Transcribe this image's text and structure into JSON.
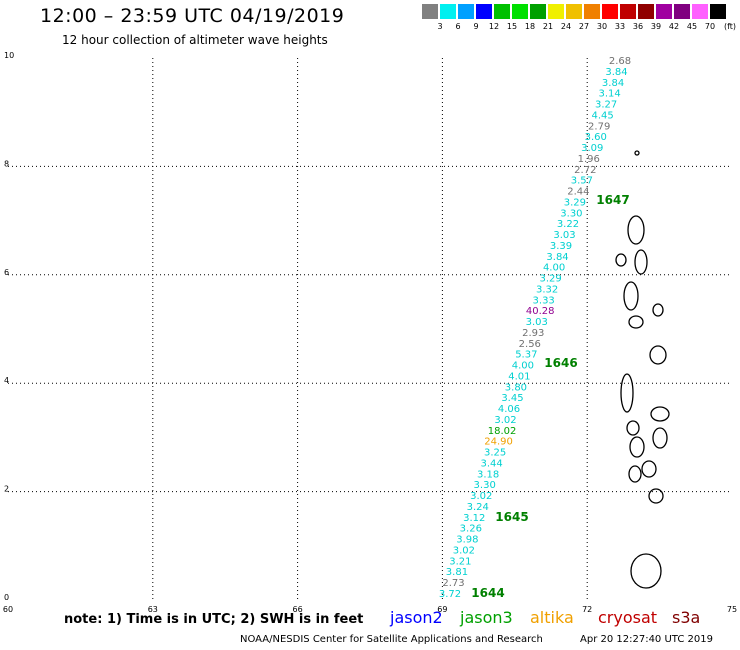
{
  "header": {
    "title": "12:00 – 23:59 UTC 04/19/2019",
    "subtitle": "12 hour collection of altimeter wave heights"
  },
  "legend": {
    "colors": [
      "#808080",
      "#00f0f0",
      "#00a0ff",
      "#0000ff",
      "#00c000",
      "#00e000",
      "#00a000",
      "#f0f000",
      "#f0c000",
      "#f08000",
      "#ff0000",
      "#c00000",
      "#900000",
      "#a000a0",
      "#800080",
      "#ff60ff",
      "#000000"
    ],
    "labels": [
      "3",
      "6",
      "9",
      "12",
      "15",
      "18",
      "21",
      "24",
      "27",
      "30",
      "33",
      "36",
      "39",
      "42",
      "45",
      "70"
    ],
    "unit": "(ft)"
  },
  "map": {
    "x_ticks": [
      "60",
      "63",
      "66",
      "69",
      "72",
      "75"
    ],
    "y_ticks": [
      "0",
      "2",
      "4",
      "6",
      "8",
      "10"
    ],
    "xlim": [
      60,
      75
    ],
    "ylim": [
      0,
      10
    ],
    "orbits": [
      "1644",
      "1645",
      "1646",
      "1647"
    ],
    "orbit_color": "#008000",
    "observations": [
      {
        "text": "3.72",
        "color": "#00d0d0"
      },
      {
        "text": "2.73",
        "color": "#707070"
      },
      {
        "text": "3.81",
        "color": "#00d0d0"
      },
      {
        "text": "3.21",
        "color": "#00d0d0"
      },
      {
        "text": "3.02",
        "color": "#00d0d0"
      },
      {
        "text": "3.98",
        "color": "#00d0d0"
      },
      {
        "text": "3.26",
        "color": "#00d0d0"
      },
      {
        "text": "3.12",
        "color": "#00d0d0"
      },
      {
        "text": "3.24",
        "color": "#00d0d0"
      },
      {
        "text": "3.02",
        "color": "#00d0d0"
      },
      {
        "text": "3.30",
        "color": "#00d0d0"
      },
      {
        "text": "3.18",
        "color": "#00d0d0"
      },
      {
        "text": "3.44",
        "color": "#00d0d0"
      },
      {
        "text": "3.25",
        "color": "#00d0d0"
      },
      {
        "text": "24.90",
        "color": "#f0a000"
      },
      {
        "text": "18.02",
        "color": "#00a000"
      },
      {
        "text": "3.02",
        "color": "#00d0d0"
      },
      {
        "text": "4.06",
        "color": "#00d0d0"
      },
      {
        "text": "3.45",
        "color": "#00d0d0"
      },
      {
        "text": "3.80",
        "color": "#00d0d0"
      },
      {
        "text": "4.01",
        "color": "#00d0d0"
      },
      {
        "text": "4.00",
        "color": "#00d0d0"
      },
      {
        "text": "5.37",
        "color": "#00d0d0"
      },
      {
        "text": "2.56",
        "color": "#707070"
      },
      {
        "text": "2.93",
        "color": "#707070"
      },
      {
        "text": "3.03",
        "color": "#00d0d0"
      },
      {
        "text": "40.28",
        "color": "#900090"
      },
      {
        "text": "3.33",
        "color": "#00d0d0"
      },
      {
        "text": "3.32",
        "color": "#00d0d0"
      },
      {
        "text": "3.29",
        "color": "#00d0d0"
      },
      {
        "text": "4.00",
        "color": "#00d0d0"
      },
      {
        "text": "3.84",
        "color": "#00d0d0"
      },
      {
        "text": "3.39",
        "color": "#00d0d0"
      },
      {
        "text": "3.03",
        "color": "#00d0d0"
      },
      {
        "text": "3.22",
        "color": "#00d0d0"
      },
      {
        "text": "3.30",
        "color": "#00d0d0"
      },
      {
        "text": "3.29",
        "color": "#00d0d0"
      },
      {
        "text": "2.44",
        "color": "#707070"
      },
      {
        "text": "3.57",
        "color": "#00d0d0"
      },
      {
        "text": "2.72",
        "color": "#707070"
      },
      {
        "text": "1.96",
        "color": "#707070"
      },
      {
        "text": "3.09",
        "color": "#00d0d0"
      },
      {
        "text": "3.60",
        "color": "#00d0d0"
      },
      {
        "text": "2.79",
        "color": "#707070"
      },
      {
        "text": "4.45",
        "color": "#00d0d0"
      },
      {
        "text": "3.27",
        "color": "#00d0d0"
      },
      {
        "text": "3.14",
        "color": "#00d0d0"
      },
      {
        "text": "3.84",
        "color": "#00d0d0"
      },
      {
        "text": "3.84",
        "color": "#00d0d0"
      },
      {
        "text": "2.68",
        "color": "#707070"
      }
    ]
  },
  "footer": {
    "note": "note: 1) Time is in UTC; 2) SWH is in feet",
    "satellites": [
      {
        "name": "jason2",
        "color": "#0000ff"
      },
      {
        "name": "jason3",
        "color": "#00a000"
      },
      {
        "name": "altika",
        "color": "#f0a000"
      },
      {
        "name": "cryosat",
        "color": "#c00000"
      },
      {
        "name": "s3a",
        "color": "#800000"
      }
    ],
    "credit": "NOAA/NESDIS Center for Satellite Applications and Research",
    "timestamp": "Apr 20 12:27:40 UTC 2019"
  }
}
